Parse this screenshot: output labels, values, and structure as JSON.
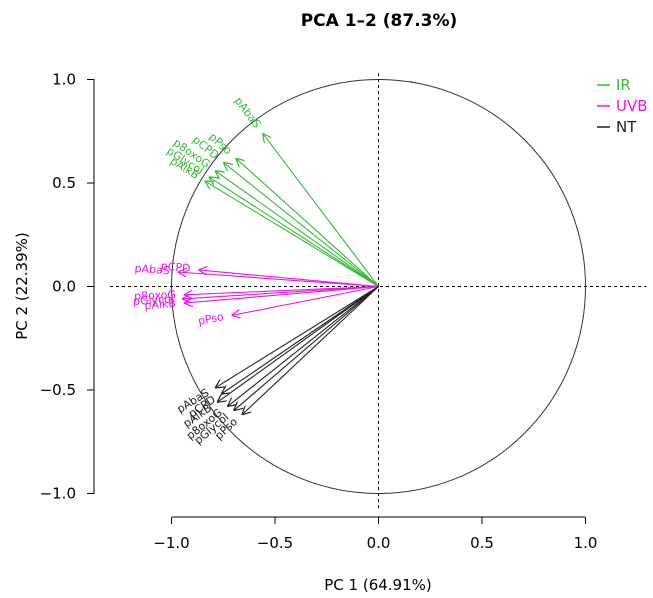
{
  "chart_data": {
    "type": "scatter",
    "title": "PCA 1–2 (87.3%)",
    "xlabel": "PC 1 (64.91%)",
    "ylabel": "PC 2 (22.39%)",
    "xlim": [
      -1.0,
      1.0
    ],
    "ylim": [
      -1.0,
      1.0
    ],
    "x_ticks": [
      "−1.0",
      "−0.5",
      "0.0",
      "0.5",
      "1.0"
    ],
    "y_ticks": [
      "1.0",
      "0.5",
      "0.0",
      "−0.5",
      "−1.0"
    ],
    "x_tick_values": [
      -1.0,
      -0.5,
      0.0,
      0.5,
      1.0
    ],
    "y_tick_values": [
      1.0,
      0.5,
      0.0,
      -0.5,
      -1.0
    ],
    "legend_position": "top-right",
    "unit_circle": true,
    "reference_lines": "dashed at x=0 and y=0",
    "colors": {
      "IR": "#33bb33",
      "UVB": "#ee11ee",
      "NT": "#222222"
    },
    "series": [
      {
        "name": "IR",
        "points": [
          {
            "label": "pAbaS",
            "x": -0.56,
            "y": 0.74
          },
          {
            "label": "pPso",
            "x": -0.69,
            "y": 0.62
          },
          {
            "label": "pCPD",
            "x": -0.75,
            "y": 0.6
          },
          {
            "label": "p8oxoG",
            "x": -0.79,
            "y": 0.56
          },
          {
            "label": "pGlycol",
            "x": -0.82,
            "y": 0.53
          },
          {
            "label": "pAlkB",
            "x": -0.84,
            "y": 0.51
          }
        ]
      },
      {
        "name": "UVB",
        "points": [
          {
            "label": "pCPD",
            "x": -0.87,
            "y": 0.08
          },
          {
            "label": "pAbaS",
            "x": -0.97,
            "y": 0.07
          },
          {
            "label": "p8oxoG",
            "x": -0.94,
            "y": -0.04
          },
          {
            "label": "pGlycol",
            "x": -0.95,
            "y": -0.06
          },
          {
            "label": "pAlkB",
            "x": -0.94,
            "y": -0.08
          },
          {
            "label": "pPso",
            "x": -0.71,
            "y": -0.14
          }
        ]
      },
      {
        "name": "NT",
        "points": [
          {
            "label": "pAbaS",
            "x": -0.79,
            "y": -0.49
          },
          {
            "label": "pCPD",
            "x": -0.76,
            "y": -0.52
          },
          {
            "label": "pAlkB",
            "x": -0.78,
            "y": -0.56
          },
          {
            "label": "p8oxoG",
            "x": -0.73,
            "y": -0.58
          },
          {
            "label": "pGlycol",
            "x": -0.7,
            "y": -0.6
          },
          {
            "label": "pPso",
            "x": -0.66,
            "y": -0.62
          }
        ]
      }
    ]
  }
}
